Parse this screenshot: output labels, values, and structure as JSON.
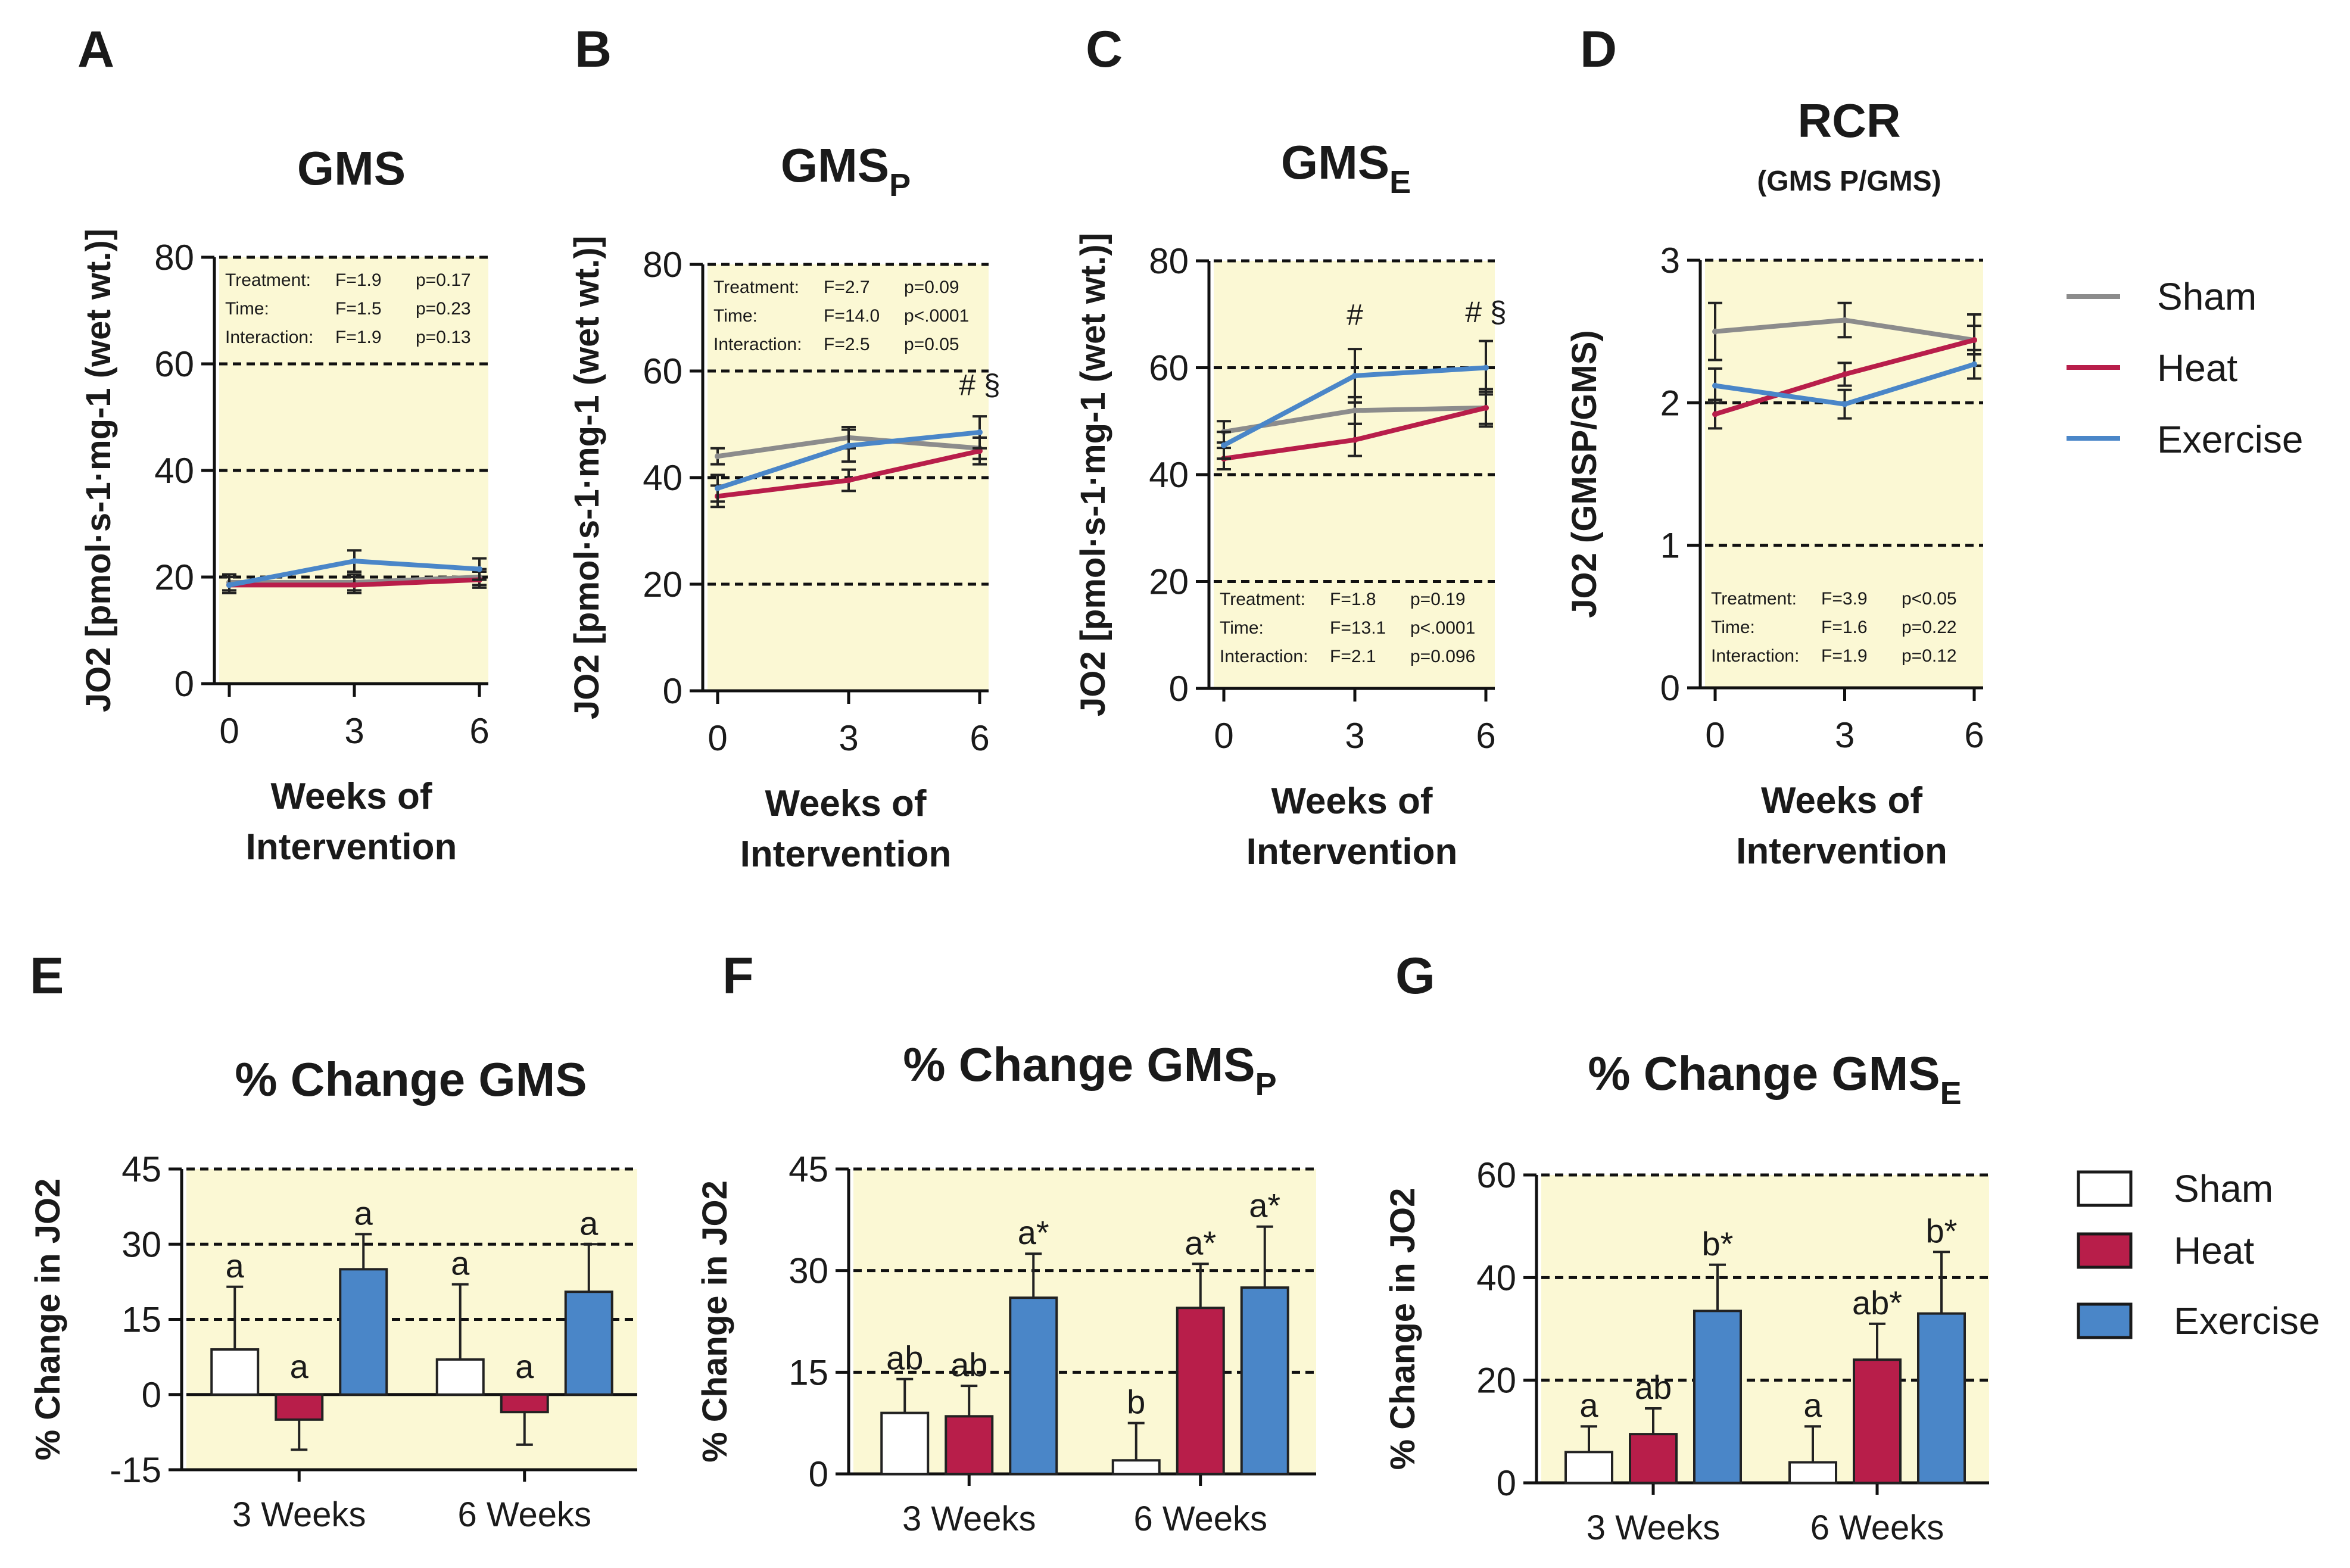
{
  "colors": {
    "sham": "#8c8c8c",
    "heat": "#b81e4a",
    "exercise": "#4a86c8",
    "bar_sham": "#ffffff",
    "bar_heat": "#b81e4a",
    "bar_exercise": "#4a86c8",
    "plot_bg": "#fbf8d4"
  },
  "legend_lines": [
    "Sham",
    "Heat",
    "Exercise"
  ],
  "legend_bars": [
    "Sham",
    "Heat",
    "Exercise"
  ],
  "line_x_label": [
    "Weeks of",
    "Intervention"
  ],
  "chart_data": [
    {
      "panel": "A",
      "type": "line",
      "title": "GMS",
      "title_sub": "",
      "ylabel": "JO2 [pmol·s-1·mg-1 (wet wt.)]",
      "x": [
        0,
        3,
        6
      ],
      "ylim": [
        0,
        80
      ],
      "yticks": [
        0,
        20,
        40,
        60,
        80
      ],
      "dashed": [
        20,
        40,
        60,
        80
      ],
      "series": [
        {
          "name": "Sham",
          "values": [
            19,
            19,
            20
          ],
          "err": [
            1.5,
            1.5,
            1.5
          ]
        },
        {
          "name": "Heat",
          "values": [
            18.5,
            18.5,
            19.5
          ],
          "err": [
            1.5,
            1.5,
            1.5
          ]
        },
        {
          "name": "Exercise",
          "values": [
            18.5,
            23,
            21.5
          ],
          "err": [
            1.5,
            2,
            2
          ]
        }
      ],
      "stats": [
        [
          "Treatment:",
          "F=1.9",
          "p=0.17"
        ],
        [
          "Time:",
          "F=1.5",
          "p=0.23"
        ],
        [
          "Interaction:",
          "F=1.9",
          "p=0.13"
        ]
      ],
      "stats_pos": "top",
      "sig_marks": []
    },
    {
      "panel": "B",
      "type": "line",
      "title": "GMS",
      "title_sub": "P",
      "ylabel": "JO2 [pmol·s-1·mg-1 (wet wt.)]",
      "x": [
        0,
        3,
        6
      ],
      "ylim": [
        0,
        80
      ],
      "yticks": [
        0,
        20,
        40,
        60,
        80
      ],
      "dashed": [
        20,
        40,
        60,
        80
      ],
      "series": [
        {
          "name": "Sham",
          "values": [
            44,
            47.5,
            45.5
          ],
          "err": [
            1.5,
            2,
            2
          ]
        },
        {
          "name": "Heat",
          "values": [
            36.5,
            39.5,
            45
          ],
          "err": [
            2,
            2,
            2.5
          ]
        },
        {
          "name": "Exercise",
          "values": [
            38,
            46,
            48.5
          ],
          "err": [
            2.5,
            3,
            3
          ]
        }
      ],
      "stats": [
        [
          "Treatment:",
          "F=2.7",
          "p=0.09"
        ],
        [
          "Time:",
          "F=14.0",
          "p<.0001"
        ],
        [
          "Interaction:",
          "F=2.5",
          "p=0.05"
        ]
      ],
      "stats_pos": "top",
      "sig_marks": [
        {
          "x": 6,
          "y": 55.5,
          "text": "# §"
        }
      ]
    },
    {
      "panel": "C",
      "type": "line",
      "title": "GMS",
      "title_sub": "E",
      "ylabel": "JO2 [pmol·s-1·mg-1 (wet wt.)]",
      "x": [
        0,
        3,
        6
      ],
      "ylim": [
        0,
        80
      ],
      "yticks": [
        0,
        20,
        40,
        60,
        80
      ],
      "dashed": [
        20,
        40,
        60,
        80
      ],
      "series": [
        {
          "name": "Sham",
          "values": [
            48,
            52,
            52.5
          ],
          "err": [
            2,
            2.5,
            3
          ]
        },
        {
          "name": "Heat",
          "values": [
            43,
            46.5,
            52.5
          ],
          "err": [
            2,
            3,
            3.5
          ]
        },
        {
          "name": "Exercise",
          "values": [
            45.5,
            58.5,
            60
          ],
          "err": [
            2.5,
            5,
            5
          ]
        }
      ],
      "stats": [
        [
          "Treatment:",
          "F=1.8",
          "p=0.19"
        ],
        [
          "Time:",
          "F=13.1",
          "p<.0001"
        ],
        [
          "Interaction:",
          "F=2.1",
          "p=0.096"
        ]
      ],
      "stats_pos": "bottom",
      "sig_marks": [
        {
          "x": 3,
          "y": 68,
          "text": "#"
        },
        {
          "x": 6,
          "y": 68.5,
          "text": "# §"
        }
      ]
    },
    {
      "panel": "D",
      "type": "line",
      "title": "RCR",
      "subtitle": "(GMS P/GMS)",
      "ylabel": "JO2 (GMSP/GMS)",
      "x": [
        0,
        3,
        6
      ],
      "ylim": [
        0,
        3
      ],
      "yticks": [
        0,
        1,
        2,
        3
      ],
      "dashed": [
        1,
        2,
        3
      ],
      "series": [
        {
          "name": "Sham",
          "values": [
            2.5,
            2.58,
            2.44
          ],
          "err": [
            0.2,
            0.12,
            0.18
          ]
        },
        {
          "name": "Heat",
          "values": [
            1.92,
            2.2,
            2.44
          ],
          "err": [
            0.1,
            0.08,
            0.1
          ]
        },
        {
          "name": "Exercise",
          "values": [
            2.12,
            1.99,
            2.27
          ],
          "err": [
            0.12,
            0.1,
            0.1
          ]
        }
      ],
      "stats": [
        [
          "Treatment:",
          "F=3.9",
          "p<0.05"
        ],
        [
          "Time:",
          "F=1.6",
          "p=0.22"
        ],
        [
          "Interaction:",
          "F=1.9",
          "p=0.12"
        ]
      ],
      "stats_pos": "bottom",
      "sig_marks": []
    },
    {
      "panel": "E",
      "type": "bar",
      "title": "% Change GMS",
      "title_sub": "",
      "ylabel": "% Change in JO2",
      "categories": [
        "3 Weeks",
        "6 Weeks"
      ],
      "ylim": [
        -15,
        45
      ],
      "yticks": [
        -15,
        0,
        15,
        30,
        45
      ],
      "dashed": [
        15,
        30,
        45
      ],
      "solid_zero": true,
      "series": [
        {
          "name": "Sham",
          "values": [
            9,
            7
          ],
          "err": [
            12.5,
            15
          ],
          "labels": [
            "a",
            "a"
          ]
        },
        {
          "name": "Heat",
          "values": [
            -5,
            -3.5
          ],
          "err": [
            6,
            6.5
          ],
          "labels": [
            "a",
            "a"
          ]
        },
        {
          "name": "Exercise",
          "values": [
            25,
            20.5
          ],
          "err": [
            7,
            9.5
          ],
          "labels": [
            "a",
            "a"
          ]
        }
      ]
    },
    {
      "panel": "F",
      "type": "bar",
      "title": "% Change GMS",
      "title_sub": "P",
      "ylabel": "% Change in JO2",
      "categories": [
        "3 Weeks",
        "6 Weeks"
      ],
      "ylim": [
        0,
        45
      ],
      "yticks": [
        0,
        15,
        30,
        45
      ],
      "dashed": [
        15,
        30,
        45
      ],
      "solid_zero": false,
      "series": [
        {
          "name": "Sham",
          "values": [
            9,
            2
          ],
          "err": [
            5,
            5.5
          ],
          "labels": [
            "ab",
            "b"
          ]
        },
        {
          "name": "Heat",
          "values": [
            8.5,
            24.5
          ],
          "err": [
            4.5,
            6.5
          ],
          "labels": [
            "ab",
            "a*"
          ]
        },
        {
          "name": "Exercise",
          "values": [
            26,
            27.5
          ],
          "err": [
            6.5,
            9
          ],
          "labels": [
            "a*",
            "a*"
          ]
        }
      ]
    },
    {
      "panel": "G",
      "type": "bar",
      "title": "% Change GMS",
      "title_sub": "E",
      "ylabel": "% Change in JO2",
      "categories": [
        "3 Weeks",
        "6 Weeks"
      ],
      "ylim": [
        0,
        60
      ],
      "yticks": [
        0,
        20,
        40,
        60
      ],
      "dashed": [
        20,
        40,
        60
      ],
      "solid_zero": false,
      "series": [
        {
          "name": "Sham",
          "values": [
            6,
            4
          ],
          "err": [
            5,
            7
          ],
          "labels": [
            "a",
            "a"
          ]
        },
        {
          "name": "Heat",
          "values": [
            9.5,
            24
          ],
          "err": [
            5,
            7
          ],
          "labels": [
            "ab",
            "ab*"
          ]
        },
        {
          "name": "Exercise",
          "values": [
            33.5,
            33
          ],
          "err": [
            9,
            12
          ],
          "labels": [
            "b*",
            "b*"
          ]
        }
      ]
    }
  ]
}
